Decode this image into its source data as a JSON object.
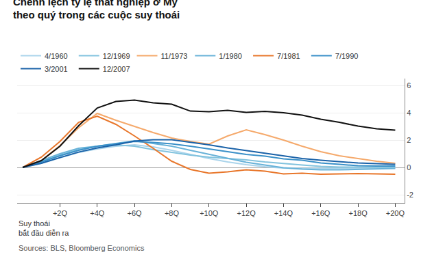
{
  "chart_data": {
    "type": "line",
    "title": "Chênh lệch tỷ lệ thất nghiệp ở Mỹ\ntheo quý trong các cuộc suy thoái",
    "annotations": [
      "Suy thoái\nbắt đầu diễn ra"
    ],
    "source": "Sources: BLS, Bloomberg Economics",
    "x": [
      0,
      1,
      2,
      3,
      4,
      5,
      6,
      7,
      8,
      9,
      10,
      11,
      12,
      13,
      14,
      15,
      16,
      17,
      18,
      19,
      20
    ],
    "series": [
      {
        "name": "4/1960",
        "color": "#aad4eb",
        "values": [
          0,
          0.3,
          0.7,
          1.1,
          1.35,
          1.55,
          1.65,
          1.5,
          1.25,
          0.95,
          0.65,
          0.4,
          0.2,
          0.05,
          -0.05,
          -0.08,
          -0.08,
          -0.08,
          -0.05,
          -0.05,
          -0.05
        ]
      },
      {
        "name": "12/1969",
        "color": "#82c3de",
        "values": [
          0,
          0.4,
          0.9,
          1.3,
          1.55,
          1.65,
          1.55,
          1.3,
          1.1,
          0.9,
          0.75,
          0.65,
          0.55,
          0.4,
          0.28,
          0.18,
          0.08,
          0.02,
          0.02,
          0.02,
          0.02
        ]
      },
      {
        "name": "11/1973",
        "color": "#f5a96b",
        "values": [
          0,
          0.5,
          1.6,
          2.9,
          3.95,
          3.45,
          3.0,
          2.55,
          2.15,
          1.9,
          1.7,
          2.3,
          2.75,
          2.4,
          2.0,
          1.55,
          1.15,
          0.85,
          0.65,
          0.45,
          0.3
        ]
      },
      {
        "name": "1/1980",
        "color": "#68b2d8",
        "values": [
          0,
          0.5,
          1.0,
          1.4,
          1.55,
          1.75,
          1.95,
          1.75,
          1.55,
          1.25,
          0.95,
          0.65,
          0.38,
          0.18,
          -0.02,
          -0.12,
          -0.18,
          -0.18,
          -0.15,
          -0.1,
          -0.08
        ]
      },
      {
        "name": "7/1981",
        "color": "#e8762a",
        "values": [
          0,
          0.75,
          1.9,
          3.3,
          3.75,
          3.15,
          2.3,
          1.4,
          0.45,
          -0.15,
          -0.42,
          -0.32,
          -0.18,
          -0.28,
          -0.48,
          -0.42,
          -0.5,
          -0.48,
          -0.45,
          -0.48,
          -0.5
        ]
      },
      {
        "name": "7/1990",
        "color": "#3a90c8",
        "values": [
          0,
          0.4,
          0.85,
          1.25,
          1.55,
          1.72,
          1.9,
          1.82,
          1.72,
          1.55,
          1.35,
          1.15,
          0.95,
          0.82,
          0.62,
          0.52,
          0.32,
          0.22,
          0.12,
          0.1,
          0.1
        ]
      },
      {
        "name": "3/2001",
        "color": "#1a62a8",
        "values": [
          0,
          0.3,
          0.72,
          1.12,
          1.42,
          1.65,
          1.92,
          2.02,
          2.02,
          1.85,
          1.65,
          1.42,
          1.22,
          1.02,
          0.82,
          0.65,
          0.52,
          0.42,
          0.32,
          0.28,
          0.22
        ]
      },
      {
        "name": "12/2007",
        "color": "#111111",
        "values": [
          0,
          0.5,
          1.55,
          3.05,
          4.35,
          4.82,
          4.92,
          4.72,
          4.62,
          4.12,
          4.08,
          4.18,
          4.02,
          4.1,
          4.0,
          3.82,
          3.52,
          3.3,
          3.02,
          2.82,
          2.72
        ]
      }
    ],
    "xlim": [
      -0.3,
      20.5
    ],
    "xticks": [
      {
        "value": 2,
        "label": "+2Q"
      },
      {
        "value": 4,
        "label": "+4Q"
      },
      {
        "value": 6,
        "label": "+6Q"
      },
      {
        "value": 8,
        "label": "+8Q"
      },
      {
        "value": 10,
        "label": "+10Q"
      },
      {
        "value": 12,
        "label": "+12Q"
      },
      {
        "value": 14,
        "label": "+14Q"
      },
      {
        "value": 16,
        "label": "+16Q"
      },
      {
        "value": 18,
        "label": "+18Q"
      },
      {
        "value": 20,
        "label": "+20Q"
      }
    ],
    "ylim": [
      -2.6,
      6.5
    ],
    "yticks": [
      -2,
      0,
      2,
      4,
      6
    ],
    "grid": true,
    "legend": "top"
  }
}
